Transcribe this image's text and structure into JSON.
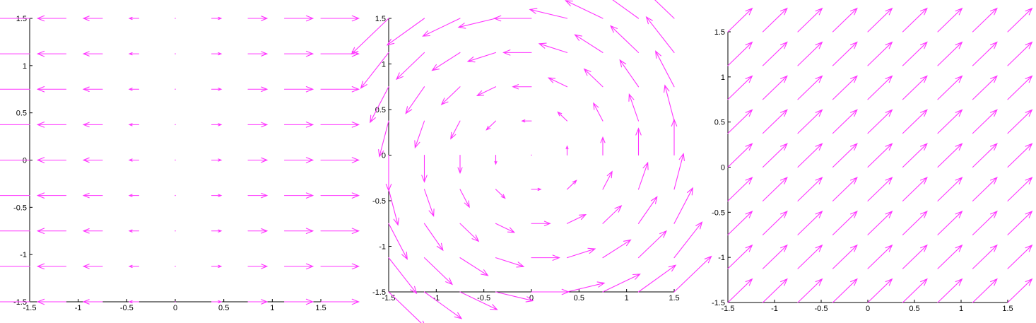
{
  "arrow_color": "#ff33ff",
  "chart_data": [
    {
      "type": "quiver",
      "title": "",
      "xlabel": "",
      "ylabel": "",
      "xlim": [
        -1.5,
        1.5
      ],
      "ylim": [
        -1.5,
        1.5
      ],
      "grid": false,
      "x_ticks": [
        "-1.5",
        "-1",
        "-0.5",
        "0",
        "0.5",
        "1",
        "1.5"
      ],
      "y_ticks": [
        "-1.5",
        "-1",
        "-0.5",
        "0",
        "0.5",
        "1",
        "1.5"
      ],
      "grid_points": [
        -1.5,
        -1.125,
        -0.75,
        -0.375,
        0,
        0.375,
        0.75,
        1.125,
        1.5
      ],
      "vector_field": {
        "u": "x",
        "v": "0"
      },
      "arrow_scale": 0.26
    },
    {
      "type": "quiver",
      "title": "",
      "xlabel": "",
      "ylabel": "",
      "xlim": [
        -1.5,
        1.5
      ],
      "ylim": [
        -1.5,
        1.5
      ],
      "grid": false,
      "x_ticks": [
        "-1.5",
        "-1",
        "-0.5",
        "0",
        "0.5",
        "1",
        "1.5"
      ],
      "y_ticks": [
        "-1.5",
        "-1",
        "-0.5",
        "0",
        "0.5",
        "1",
        "1.5"
      ],
      "grid_points": [
        -1.5,
        -1.125,
        -0.75,
        -0.375,
        0,
        0.375,
        0.75,
        1.125,
        1.5
      ],
      "vector_field": {
        "u": "-y",
        "v": "x"
      },
      "arrow_scale": 0.26
    },
    {
      "type": "quiver",
      "title": "",
      "xlabel": "",
      "ylabel": "",
      "xlim": [
        -1.5,
        1.5
      ],
      "ylim": [
        -1.5,
        1.5
      ],
      "grid": false,
      "x_ticks": [
        "-1.5",
        "-1",
        "-0.5",
        "0",
        "0.5",
        "1",
        "1.5"
      ],
      "y_ticks": [
        "-1.5",
        "-1",
        "-0.5",
        "0",
        "0.5",
        "1",
        "1.5"
      ],
      "grid_points": [
        -1.5,
        -1.125,
        -0.75,
        -0.375,
        0,
        0.375,
        0.75,
        1.125,
        1.5
      ],
      "vector_field": {
        "u": "1",
        "v": "1"
      },
      "arrow_scale": 0.26
    }
  ]
}
